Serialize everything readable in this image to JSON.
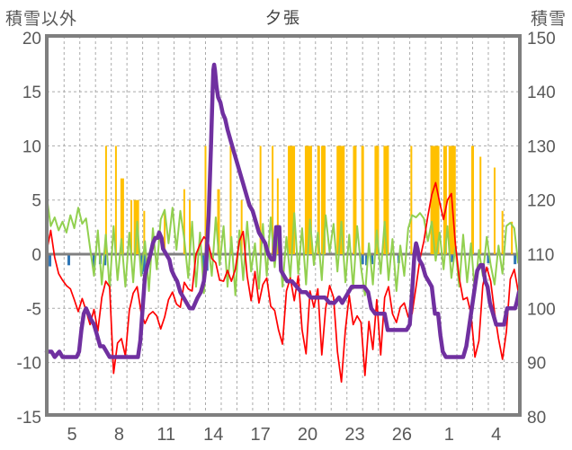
{
  "chart_data": {
    "type": "line",
    "title": "夕張",
    "left_axis": {
      "title": "積雪以外",
      "min": -15,
      "max": 20,
      "ticks": [
        20,
        15,
        10,
        5,
        0,
        -5,
        -10,
        -15
      ]
    },
    "right_axis": {
      "title": "積雪",
      "min": 80,
      "max": 150,
      "ticks": [
        150,
        140,
        130,
        120,
        110,
        100,
        90,
        80
      ]
    },
    "x_axis": {
      "day_min": 3.4,
      "day_max": 33.5,
      "gridline_days_start": 4.5,
      "gridline_days_end": 32.5,
      "tick_days": [
        5,
        8,
        11,
        14,
        17,
        20,
        23,
        26,
        29,
        32
      ],
      "tick_labels": [
        "5",
        "8",
        "11",
        "14",
        "17",
        "20",
        "23",
        "26",
        "1",
        "4"
      ]
    },
    "grid": {
      "color": "#ababab",
      "zero_line_color": "#808080",
      "border_color": "#7f7f7f",
      "label_color": "#595959"
    },
    "series": {
      "red_line": {
        "color": "#FF0000",
        "axis": "left",
        "day_start": 3.4,
        "day_step": 0.25,
        "values": [
          0.3,
          2.2,
          -0.3,
          -1.8,
          -2.4,
          -2.9,
          -3.2,
          -4.2,
          -5.3,
          -4.1,
          -5.2,
          -6.5,
          -5.1,
          -7.1,
          -4.0,
          -2.5,
          -3.0,
          -11.0,
          -8.2,
          -7.8,
          -9.4,
          -5.2,
          -3.6,
          -3.0,
          -5.4,
          -6.4,
          -5.6,
          -5.3,
          -5.7,
          -6.9,
          -5.8,
          -4.2,
          -3.5,
          -4.6,
          -4.9,
          -2.6,
          -3.2,
          -3.4,
          0.0,
          0.9,
          1.6,
          1.2,
          -0.4,
          -0.8,
          -2.4,
          -2.5,
          -1.5,
          -2.5,
          -1.4,
          1.2,
          2.1,
          -2.0,
          -4.3,
          -1.6,
          -4.5,
          -2.8,
          -2.2,
          -4.8,
          -5.2,
          -7.0,
          -8.3,
          -3.4,
          -2.2,
          -4.3,
          -2.0,
          -7.0,
          -9.2,
          -3.4,
          -4.9,
          -3.2,
          -9.3,
          -5.0,
          -2.9,
          -4.0,
          -9.0,
          -11.8,
          -7.0,
          -3.8,
          -6.5,
          -5.7,
          -6.3,
          -11.2,
          -6.2,
          -8.8,
          -4.2,
          -9.3,
          -4.0,
          -3.0,
          -5.5,
          -6.3,
          -4.9,
          -4.5,
          -5.8,
          -5.5,
          -3.0,
          -0.4,
          1.2,
          3.5,
          5.5,
          6.6,
          4.8,
          3.2,
          5.0,
          5.6,
          1.0,
          -2.2,
          -4.2,
          -4.0,
          -5.5,
          -9.5,
          -8.0,
          -2.9,
          -1.2,
          -2.5,
          -5.4,
          -7.8,
          -9.7,
          -7.2,
          -2.3,
          -1.4,
          -3.4
        ]
      },
      "green_line": {
        "color": "#92D050",
        "axis": "left",
        "day_start": 3.4,
        "day_step": 0.25,
        "values": [
          5.3,
          2.6,
          3.4,
          2.2,
          3.0,
          2.0,
          3.6,
          2.4,
          4.3,
          2.8,
          3.3,
          0.6,
          -2.0,
          2.2,
          -2.8,
          1.8,
          -3.2,
          2.6,
          -2.4,
          1.4,
          -3.0,
          2.0,
          -2.6,
          3.0,
          -2.0,
          1.2,
          -3.4,
          2.4,
          -1.4,
          3.2,
          4.1,
          1.0,
          4.3,
          0.4,
          4.0,
          1.4,
          -2.2,
          3.0,
          -3.0,
          2.0,
          -3.6,
          1.2,
          -2.0,
          3.4,
          -1.0,
          2.6,
          -3.0,
          1.6,
          -3.8,
          2.2,
          -2.4,
          3.0,
          -1.6,
          1.0,
          -3.2,
          2.8,
          -2.0,
          3.4,
          -1.2,
          2.2,
          -3.0,
          1.6,
          -2.2,
          3.8,
          -1.8,
          2.4,
          -2.8,
          3.2,
          -1.0,
          2.0,
          -2.4,
          3.6,
          0.2,
          2.8,
          -1.6,
          3.0,
          -2.6,
          1.8,
          -3.2,
          2.6,
          -1.2,
          -3.8,
          1.0,
          -2.8,
          2.2,
          -1.8,
          3.0,
          -2.4,
          1.4,
          -3.4,
          0.8,
          -2.0,
          2.4,
          3.6,
          3.4,
          3.8,
          3.3,
          1.2,
          3.0,
          -0.6,
          2.0,
          -1.4,
          2.6,
          -2.2,
          0.6,
          -3.0,
          1.8,
          -2.6,
          1.0,
          -3.6,
          0.4,
          -2.0,
          1.6,
          -1.0,
          -2.8,
          0.8,
          -1.8,
          2.6,
          2.9,
          2.4,
          -0.8
        ]
      },
      "purple_line": {
        "color": "#7030A0",
        "axis": "right",
        "points": [
          [
            3.4,
            92
          ],
          [
            3.7,
            92
          ],
          [
            3.9,
            91
          ],
          [
            4.2,
            92
          ],
          [
            4.4,
            91
          ],
          [
            4.7,
            91
          ],
          [
            5.0,
            91
          ],
          [
            5.3,
            91
          ],
          [
            5.45,
            92
          ],
          [
            5.6,
            96
          ],
          [
            5.75,
            99
          ],
          [
            5.9,
            100
          ],
          [
            6.05,
            99
          ],
          [
            6.2,
            98
          ],
          [
            6.4,
            97
          ],
          [
            6.6,
            95
          ],
          [
            6.8,
            93
          ],
          [
            7.0,
            93
          ],
          [
            7.2,
            92
          ],
          [
            7.4,
            91
          ],
          [
            7.6,
            91
          ],
          [
            7.9,
            91
          ],
          [
            8.3,
            91
          ],
          [
            8.7,
            91
          ],
          [
            9.0,
            91
          ],
          [
            9.2,
            91
          ],
          [
            9.35,
            94
          ],
          [
            9.5,
            100
          ],
          [
            9.65,
            106
          ],
          [
            9.8,
            108
          ],
          [
            9.9,
            109
          ],
          [
            10.0,
            110
          ],
          [
            10.15,
            112
          ],
          [
            10.3,
            113
          ],
          [
            10.45,
            113
          ],
          [
            10.55,
            114
          ],
          [
            10.7,
            113
          ],
          [
            10.8,
            111
          ],
          [
            11.0,
            110
          ],
          [
            11.2,
            109
          ],
          [
            11.35,
            107
          ],
          [
            11.5,
            106
          ],
          [
            11.7,
            105
          ],
          [
            11.9,
            103
          ],
          [
            12.1,
            102
          ],
          [
            12.3,
            101
          ],
          [
            12.5,
            100
          ],
          [
            12.7,
            100
          ],
          [
            12.85,
            101
          ],
          [
            13.0,
            102
          ],
          [
            13.2,
            103
          ],
          [
            13.4,
            105
          ],
          [
            13.55,
            109
          ],
          [
            13.7,
            117
          ],
          [
            13.85,
            130
          ],
          [
            13.95,
            140
          ],
          [
            14.0,
            144
          ],
          [
            14.05,
            145
          ],
          [
            14.1,
            144
          ],
          [
            14.2,
            141
          ],
          [
            14.3,
            139
          ],
          [
            14.45,
            138
          ],
          [
            14.6,
            136
          ],
          [
            14.75,
            135
          ],
          [
            14.9,
            133
          ],
          [
            15.1,
            131
          ],
          [
            15.3,
            129
          ],
          [
            15.5,
            127
          ],
          [
            15.7,
            125
          ],
          [
            15.9,
            123
          ],
          [
            16.1,
            121
          ],
          [
            16.3,
            119
          ],
          [
            16.5,
            118
          ],
          [
            16.7,
            116
          ],
          [
            16.9,
            114
          ],
          [
            17.1,
            113
          ],
          [
            17.3,
            112
          ],
          [
            17.5,
            110
          ],
          [
            17.7,
            109
          ],
          [
            17.85,
            109
          ],
          [
            18.0,
            115
          ],
          [
            18.2,
            115
          ],
          [
            18.3,
            107
          ],
          [
            18.5,
            106
          ],
          [
            18.7,
            105
          ],
          [
            19.0,
            105
          ],
          [
            19.3,
            104
          ],
          [
            19.6,
            103
          ],
          [
            19.9,
            103
          ],
          [
            20.2,
            102
          ],
          [
            20.5,
            102
          ],
          [
            20.8,
            102
          ],
          [
            21.1,
            102
          ],
          [
            21.4,
            101
          ],
          [
            21.7,
            101
          ],
          [
            22.0,
            102
          ],
          [
            22.2,
            101
          ],
          [
            22.4,
            102
          ],
          [
            22.6,
            103
          ],
          [
            22.8,
            104
          ],
          [
            23.0,
            104
          ],
          [
            23.3,
            104
          ],
          [
            23.6,
            104
          ],
          [
            23.85,
            103
          ],
          [
            24.05,
            100
          ],
          [
            24.3,
            99
          ],
          [
            24.6,
            99
          ],
          [
            24.9,
            99
          ],
          [
            25.1,
            96
          ],
          [
            25.4,
            96
          ],
          [
            25.7,
            96
          ],
          [
            26.0,
            96
          ],
          [
            26.3,
            96
          ],
          [
            26.5,
            97
          ],
          [
            26.65,
            103
          ],
          [
            26.8,
            110
          ],
          [
            26.9,
            112
          ],
          [
            27.0,
            111
          ],
          [
            27.1,
            109
          ],
          [
            27.3,
            108
          ],
          [
            27.5,
            106
          ],
          [
            27.7,
            105
          ],
          [
            27.9,
            104
          ],
          [
            28.1,
            99
          ],
          [
            28.3,
            99
          ],
          [
            28.45,
            95
          ],
          [
            28.6,
            92
          ],
          [
            28.8,
            91
          ],
          [
            29.0,
            91
          ],
          [
            29.3,
            91
          ],
          [
            29.6,
            91
          ],
          [
            29.9,
            91
          ],
          [
            30.1,
            93
          ],
          [
            30.25,
            96
          ],
          [
            30.4,
            99
          ],
          [
            30.6,
            103
          ],
          [
            30.8,
            107
          ],
          [
            31.0,
            108
          ],
          [
            31.15,
            108
          ],
          [
            31.3,
            105
          ],
          [
            31.45,
            104
          ],
          [
            31.6,
            101
          ],
          [
            31.8,
            99
          ],
          [
            32.0,
            97
          ],
          [
            32.2,
            97
          ],
          [
            32.5,
            97
          ],
          [
            32.7,
            100
          ],
          [
            33.0,
            100
          ],
          [
            33.2,
            100
          ],
          [
            33.3,
            101
          ],
          [
            33.45,
            103
          ]
        ]
      },
      "orange_bars": {
        "color": "#FFC000",
        "axis": "left",
        "bars": [
          [
            7.17,
            2,
            10
          ],
          [
            7.8,
            2,
            10
          ],
          [
            8.2,
            4,
            7
          ],
          [
            8.78,
            2,
            5
          ],
          [
            9.1,
            6,
            5
          ],
          [
            9.6,
            2,
            4
          ],
          [
            10.9,
            2,
            4
          ],
          [
            12.15,
            2,
            6
          ],
          [
            12.5,
            2,
            5
          ],
          [
            13.5,
            2,
            10
          ],
          [
            14.33,
            3,
            6
          ],
          [
            15.1,
            2,
            10
          ],
          [
            15.8,
            2,
            5
          ],
          [
            17.0,
            2,
            10
          ],
          [
            17.77,
            2,
            10
          ],
          [
            18.1,
            2,
            7
          ],
          [
            18.97,
            8,
            10
          ],
          [
            20.05,
            8,
            10
          ],
          [
            20.7,
            3,
            10
          ],
          [
            21.0,
            5,
            10
          ],
          [
            22.1,
            9,
            10
          ],
          [
            23.0,
            4,
            10
          ],
          [
            23.5,
            3,
            10
          ],
          [
            24.4,
            5,
            10
          ],
          [
            25.0,
            6,
            10
          ],
          [
            26.6,
            2,
            10
          ],
          [
            28.1,
            10,
            10
          ],
          [
            28.75,
            4,
            10
          ],
          [
            29.2,
            8,
            10
          ],
          [
            30.5,
            3,
            10
          ],
          [
            31.0,
            2,
            9
          ],
          [
            31.9,
            2,
            8
          ],
          [
            32.4,
            2,
            4
          ],
          [
            33.0,
            2,
            3
          ]
        ]
      },
      "blue_marks": {
        "color": "#2E75B6",
        "axis": "left",
        "marks": [
          [
            3.6,
            -1.0
          ],
          [
            4.8,
            -0.9
          ],
          [
            6.4,
            -1.1
          ],
          [
            6.8,
            -0.8
          ],
          [
            7.1,
            -0.9
          ],
          [
            9.45,
            -1.7
          ],
          [
            9.6,
            -1.5
          ],
          [
            13.35,
            -1.3
          ],
          [
            13.6,
            -1.4
          ],
          [
            23.5,
            -0.8
          ],
          [
            23.75,
            -0.9
          ],
          [
            24.1,
            -0.8
          ],
          [
            25.8,
            -0.7
          ],
          [
            29.2,
            -0.6
          ],
          [
            31.5,
            -0.7
          ],
          [
            33.2,
            -0.8
          ]
        ]
      }
    }
  }
}
